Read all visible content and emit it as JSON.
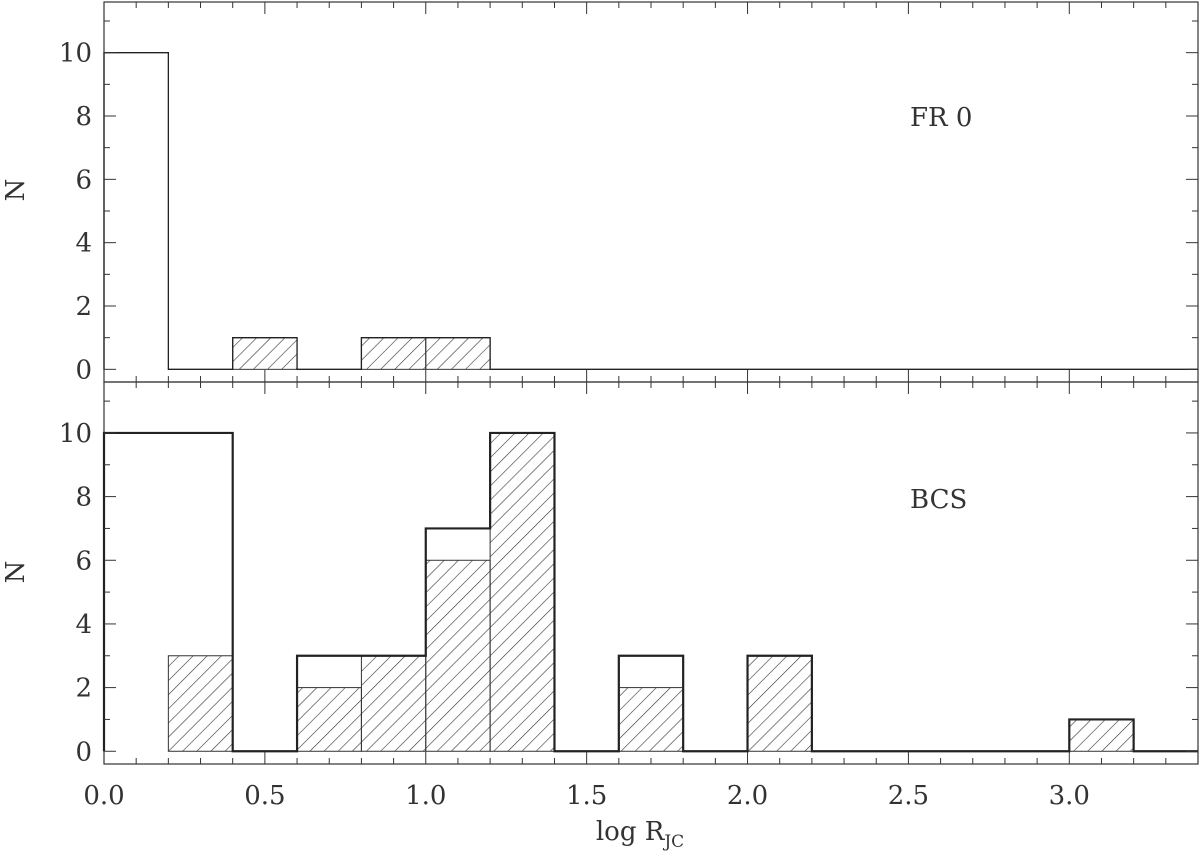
{
  "chart_data": [
    {
      "type": "bar",
      "panel": "top",
      "annotation": "FR 0",
      "ylabel": "N",
      "xlim": [
        0,
        3.4
      ],
      "ylim": [
        -0.4,
        11.6
      ],
      "y_ticks": [
        "0",
        "2",
        "4",
        "6",
        "8",
        "10"
      ],
      "bin_width": 0.2,
      "series": [
        {
          "style": "outline",
          "bins": [
            {
              "x0": 0.0,
              "x1": 0.2,
              "value": 10
            },
            {
              "x0": 0.4,
              "x1": 0.6,
              "value": 1
            },
            {
              "x0": 0.8,
              "x1": 1.0,
              "value": 1
            },
            {
              "x0": 1.0,
              "x1": 1.2,
              "value": 1
            }
          ]
        },
        {
          "style": "hatched",
          "bins": [
            {
              "x0": 0.4,
              "x1": 0.6,
              "value": 1
            },
            {
              "x0": 0.8,
              "x1": 1.0,
              "value": 1
            },
            {
              "x0": 1.0,
              "x1": 1.2,
              "value": 1
            }
          ]
        }
      ]
    },
    {
      "type": "bar",
      "panel": "bottom",
      "annotation": "BCS",
      "ylabel": "N",
      "xlabel_main": "log R",
      "xlabel_sub": "JC",
      "xlim": [
        0,
        3.4
      ],
      "ylim": [
        -0.4,
        11.6
      ],
      "x_ticks": [
        "0.0",
        "0.5",
        "1.0",
        "1.5",
        "2.0",
        "2.5",
        "3.0"
      ],
      "y_ticks": [
        "0",
        "2",
        "4",
        "6",
        "8",
        "10"
      ],
      "bin_width": 0.2,
      "series": [
        {
          "style": "outline",
          "bins": [
            {
              "x0": 0.0,
              "x1": 0.2,
              "value": 10
            },
            {
              "x0": 0.2,
              "x1": 0.4,
              "value": 10
            },
            {
              "x0": 0.6,
              "x1": 0.8,
              "value": 3
            },
            {
              "x0": 0.8,
              "x1": 1.0,
              "value": 3
            },
            {
              "x0": 1.0,
              "x1": 1.2,
              "value": 7
            },
            {
              "x0": 1.2,
              "x1": 1.4,
              "value": 10
            },
            {
              "x0": 1.6,
              "x1": 1.8,
              "value": 3
            },
            {
              "x0": 2.0,
              "x1": 2.2,
              "value": 3
            },
            {
              "x0": 3.0,
              "x1": 3.2,
              "value": 1
            }
          ]
        },
        {
          "style": "hatched",
          "bins": [
            {
              "x0": 0.2,
              "x1": 0.4,
              "value": 3
            },
            {
              "x0": 0.6,
              "x1": 0.8,
              "value": 2
            },
            {
              "x0": 0.8,
              "x1": 1.0,
              "value": 3
            },
            {
              "x0": 1.0,
              "x1": 1.2,
              "value": 6
            },
            {
              "x0": 1.2,
              "x1": 1.4,
              "value": 10
            },
            {
              "x0": 1.6,
              "x1": 1.8,
              "value": 2
            },
            {
              "x0": 2.0,
              "x1": 2.2,
              "value": 3
            },
            {
              "x0": 3.0,
              "x1": 3.2,
              "value": 1
            }
          ]
        }
      ]
    }
  ]
}
